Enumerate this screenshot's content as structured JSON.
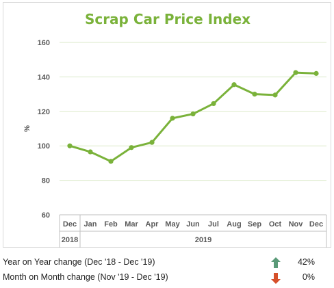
{
  "chart_data": {
    "type": "line",
    "title": "Scrap Car Price Index",
    "ylabel": "%",
    "xlabel": "",
    "ylim": [
      60,
      160
    ],
    "yticks": [
      60,
      80,
      100,
      120,
      140,
      160
    ],
    "categories": [
      "Dec",
      "Jan",
      "Feb",
      "Mar",
      "Apr",
      "May",
      "Jun",
      "Jul",
      "Aug",
      "Sep",
      "Oct",
      "Nov",
      "Dec"
    ],
    "year_groups": [
      {
        "label": "2018",
        "span": 1
      },
      {
        "label": "2019",
        "span": 12
      }
    ],
    "series": [
      {
        "values": [
          100,
          96.5,
          91,
          99,
          102,
          116,
          118.5,
          124.5,
          135.5,
          130,
          129.5,
          142.5,
          142
        ]
      }
    ],
    "grid": true,
    "color": "#7ab23a"
  },
  "summary": {
    "yoy": {
      "label": "Year on Year change (Dec '18 - Dec '19)",
      "value": "42%",
      "direction": "up",
      "color": "#5a9a78"
    },
    "mom": {
      "label": "Month on Month change (Nov '19 - Dec '19)",
      "value": "0%",
      "direction": "down",
      "color": "#d6502a"
    }
  }
}
